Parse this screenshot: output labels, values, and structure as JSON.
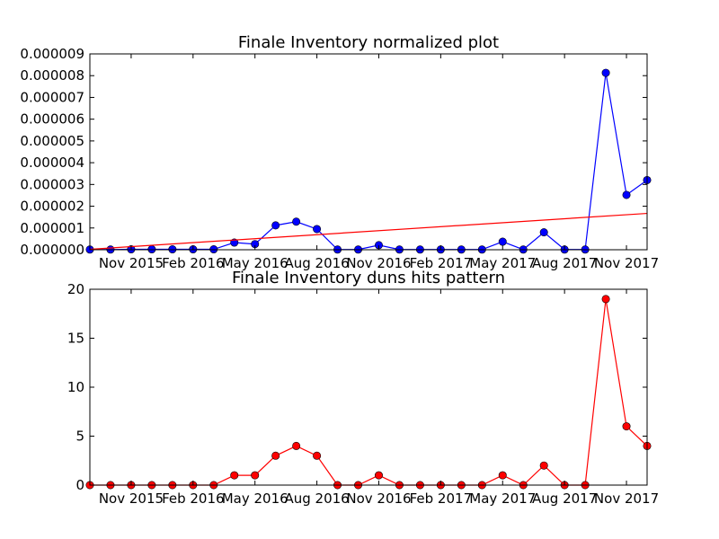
{
  "chart_data": [
    {
      "type": "line",
      "title": "Finale Inventory normalized plot",
      "x_tick_labels": [
        "Nov 2015",
        "Feb 2016",
        "May 2016",
        "Aug 2016",
        "Nov 2016",
        "Feb 2017",
        "May 2017",
        "Aug 2017",
        "Nov 2017"
      ],
      "y_tick_labels": [
        "0.000000",
        "0.000001",
        "0.000002",
        "0.000003",
        "0.000004",
        "0.000005",
        "0.000006",
        "0.000007",
        "0.000008",
        "0.000009"
      ],
      "ylim": [
        0,
        9e-06
      ],
      "series": [
        {
          "color": "#0000ff",
          "marker": "circle",
          "x": [
            "2015-09",
            "2015-10",
            "2015-11",
            "2015-12",
            "2016-01",
            "2016-02",
            "2016-03",
            "2016-04",
            "2016-05",
            "2016-06",
            "2016-07",
            "2016-08",
            "2016-09",
            "2016-10",
            "2016-11",
            "2016-12",
            "2017-01",
            "2017-02",
            "2017-03",
            "2017-04",
            "2017-05",
            "2017-06",
            "2017-07",
            "2017-08",
            "2017-09",
            "2017-10",
            "2017-11",
            "2017-12"
          ],
          "values": [
            1e-08,
            1e-08,
            2e-08,
            2e-08,
            2e-08,
            2e-08,
            2e-08,
            3.3e-07,
            2.6e-07,
            1.12e-06,
            1.29e-06,
            9.5e-07,
            1e-08,
            1e-08,
            2.1e-07,
            1e-08,
            1e-08,
            1e-08,
            1e-08,
            1e-08,
            3.7e-07,
            1e-08,
            8e-07,
            1e-08,
            1e-08,
            8.13e-06,
            2.52e-06,
            3.2e-06
          ]
        },
        {
          "color": "#ff0000",
          "marker": "none",
          "x": [
            "2015-09",
            "2017-12"
          ],
          "values": [
            2e-08,
            1.67e-06
          ]
        }
      ]
    },
    {
      "type": "line",
      "title": "Finale Inventory duns hits pattern",
      "x_tick_labels": [
        "Nov 2015",
        "Feb 2016",
        "May 2016",
        "Aug 2016",
        "Nov 2016",
        "Feb 2017",
        "May 2017",
        "Aug 2017",
        "Nov 2017"
      ],
      "y_tick_labels": [
        "0",
        "5",
        "10",
        "15",
        "20"
      ],
      "ylim": [
        0,
        20
      ],
      "series": [
        {
          "color": "#ff0000",
          "marker": "circle",
          "x": [
            "2015-09",
            "2015-10",
            "2015-11",
            "2015-12",
            "2016-01",
            "2016-02",
            "2016-03",
            "2016-04",
            "2016-05",
            "2016-06",
            "2016-07",
            "2016-08",
            "2016-09",
            "2016-10",
            "2016-11",
            "2016-12",
            "2017-01",
            "2017-02",
            "2017-03",
            "2017-04",
            "2017-05",
            "2017-06",
            "2017-07",
            "2017-08",
            "2017-09",
            "2017-10",
            "2017-11",
            "2017-12"
          ],
          "values": [
            0,
            0,
            0,
            0,
            0,
            0,
            0,
            1,
            1,
            3,
            4,
            3,
            0,
            0,
            1,
            0,
            0,
            0,
            0,
            0,
            1,
            0,
            2,
            0,
            0,
            19,
            6,
            4
          ]
        }
      ]
    }
  ]
}
